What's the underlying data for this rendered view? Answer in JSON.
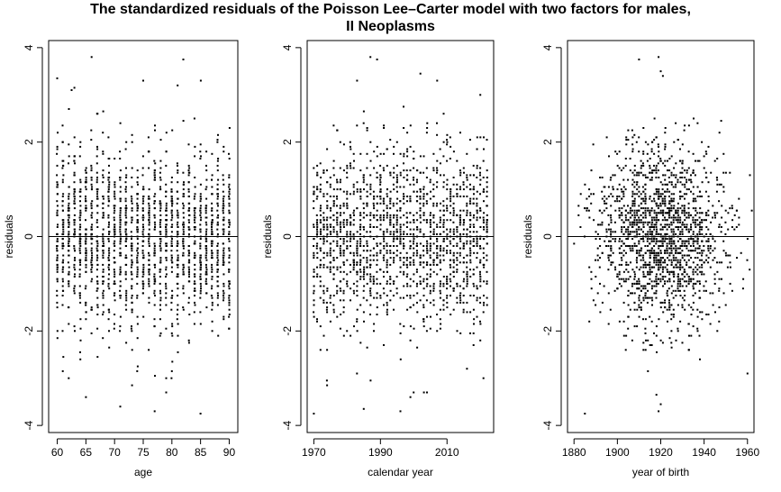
{
  "title": {
    "line1": "The standardized residuals of the Poisson Lee–Carter model with two factors for males,",
    "line2": "II Neoplasms"
  },
  "chart_data": [
    {
      "type": "scatter",
      "xlabel": "age",
      "ylabel": "residuals",
      "xlim": [
        58.5,
        91.5
      ],
      "ylim": [
        -4.15,
        4.15
      ],
      "xticks": [
        60,
        65,
        70,
        75,
        80,
        85,
        90
      ],
      "yticks": [
        -4,
        -2,
        0,
        2,
        4
      ],
      "reference_line_y": 0,
      "grid": false,
      "points_spec": {
        "x_from": 60,
        "x_to": 90,
        "x_step": 1,
        "per_x": 55,
        "sd": 0.95
      },
      "notable_points": [
        [
          62.5,
          3.1
        ],
        [
          63,
          3.15
        ],
        [
          66,
          3.8
        ],
        [
          81,
          3.2
        ],
        [
          82,
          3.75
        ],
        [
          60,
          3.35
        ],
        [
          65,
          -3.4
        ],
        [
          71,
          -3.6
        ],
        [
          77,
          -3.7
        ],
        [
          85,
          -3.75
        ],
        [
          62,
          -3.0
        ],
        [
          79,
          -3.3
        ]
      ]
    },
    {
      "type": "scatter",
      "xlabel": "calendar year",
      "ylabel": "residuals",
      "xlim": [
        1968,
        2024
      ],
      "ylim": [
        -4.15,
        4.15
      ],
      "xticks": [
        1970,
        1990,
        2010
      ],
      "yticks": [
        -4,
        -2,
        0,
        2,
        4
      ],
      "reference_line_y": 0,
      "grid": false,
      "points_spec": {
        "x_from": 1970,
        "x_to": 2022,
        "x_step": 1,
        "per_x": 32,
        "sd": 0.95
      },
      "notable_points": [
        [
          1987,
          3.8
        ],
        [
          1989,
          3.75
        ],
        [
          1983,
          3.3
        ],
        [
          2002,
          3.45
        ],
        [
          1985,
          -3.65
        ],
        [
          1996,
          -3.7
        ],
        [
          1970,
          -3.75
        ],
        [
          1999,
          -3.4
        ]
      ]
    },
    {
      "type": "scatter",
      "xlabel": "year of birth",
      "ylabel": "residuals",
      "xlim": [
        1877,
        1963
      ],
      "ylim": [
        -4.15,
        4.15
      ],
      "xticks": [
        1880,
        1900,
        1920,
        1940,
        1960
      ],
      "yticks": [
        -4,
        -2,
        0,
        2,
        4
      ],
      "reference_line_y": 0,
      "grid": false,
      "points_spec": {
        "x_center": 1920,
        "x_sd": 15,
        "x_min": 1880,
        "x_max": 1962,
        "n": 1650,
        "sd": 0.95
      },
      "notable_points": [
        [
          1910,
          3.75
        ],
        [
          1919,
          3.8
        ],
        [
          1920,
          3.5
        ],
        [
          1921,
          3.4
        ],
        [
          1885,
          -3.75
        ],
        [
          1919,
          -3.7
        ],
        [
          1920,
          -3.55
        ],
        [
          1918,
          -3.35
        ],
        [
          1960,
          -2.9
        ]
      ]
    }
  ]
}
